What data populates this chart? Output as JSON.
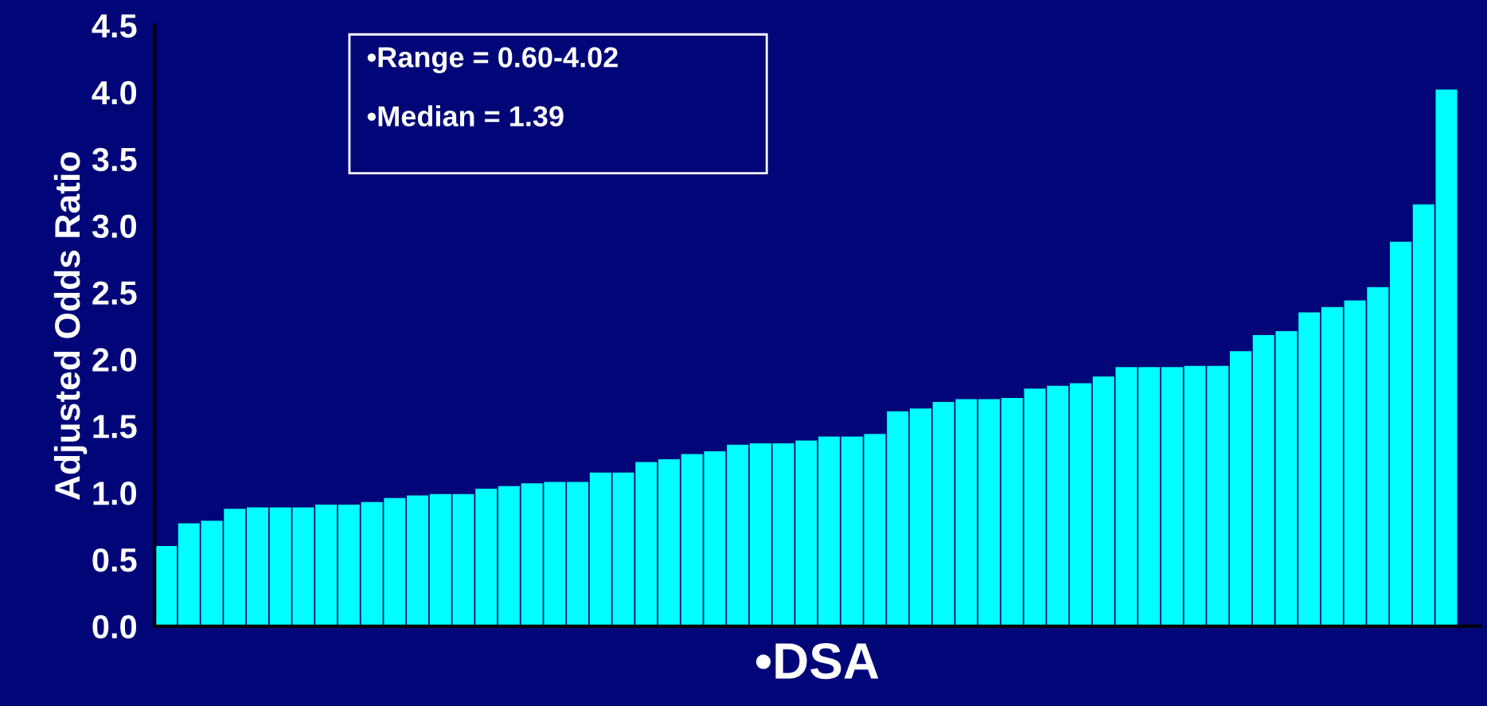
{
  "chart_data": {
    "type": "bar",
    "xlabel": "•DSA",
    "ylabel": "Adjusted Odds Ratio",
    "annotations": [
      "•Range = 0.60-4.02",
      "•Median = 1.39"
    ],
    "categories": [
      null,
      null,
      null,
      null,
      null,
      null,
      null,
      null,
      null,
      null,
      null,
      null,
      null,
      null,
      null,
      null,
      null,
      null,
      null,
      null,
      null,
      null,
      null,
      null,
      null,
      null,
      null,
      null,
      null,
      null,
      null,
      null,
      null,
      null,
      null,
      null,
      null,
      null,
      null,
      null,
      null,
      null,
      null,
      null,
      null,
      null,
      null,
      null,
      null,
      null,
      null,
      null,
      null,
      null,
      null,
      null,
      null
    ],
    "values": [
      0.6,
      0.77,
      0.79,
      0.88,
      0.89,
      0.89,
      0.89,
      0.91,
      0.91,
      0.93,
      0.96,
      0.98,
      0.99,
      0.99,
      1.03,
      1.05,
      1.07,
      1.08,
      1.08,
      1.15,
      1.15,
      1.23,
      1.25,
      1.29,
      1.31,
      1.36,
      1.37,
      1.37,
      1.39,
      1.42,
      1.42,
      1.44,
      1.61,
      1.63,
      1.68,
      1.7,
      1.7,
      1.71,
      1.78,
      1.8,
      1.82,
      1.87,
      1.94,
      1.94,
      1.94,
      1.95,
      1.95,
      2.06,
      2.18,
      2.21,
      2.35,
      2.39,
      2.44,
      2.54,
      2.88,
      3.16,
      4.02
    ],
    "color": "#00ffff",
    "ylim": [
      0,
      4.5
    ],
    "yticks": [
      {
        "value": 0,
        "label": "0.0"
      },
      {
        "value": 0.5,
        "label": "0.5"
      },
      {
        "value": 1,
        "label": "1.0"
      },
      {
        "value": 1.5,
        "label": "1.5"
      },
      {
        "value": 2,
        "label": "2.0"
      },
      {
        "value": 2.5,
        "label": "2.5"
      },
      {
        "value": 3,
        "label": "3.0"
      },
      {
        "value": 3.5,
        "label": "3.5"
      },
      {
        "value": 4,
        "label": "4.0"
      },
      {
        "value": 4.5,
        "label": "4.5"
      }
    ],
    "grid": false,
    "legend": false
  }
}
